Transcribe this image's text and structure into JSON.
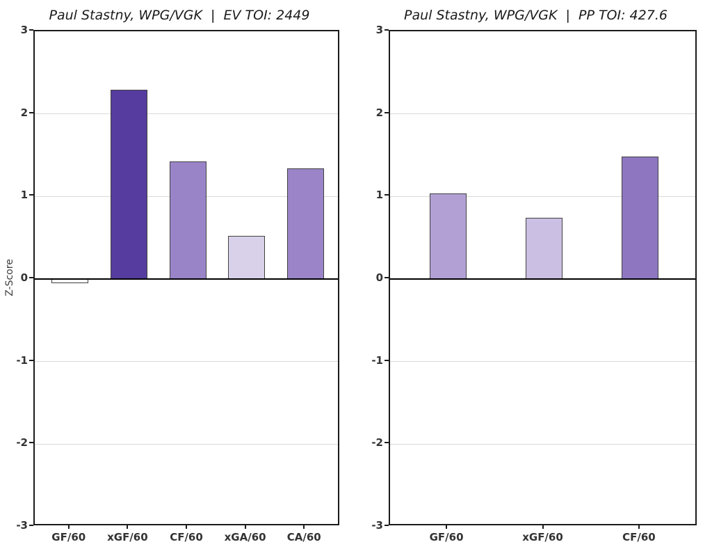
{
  "figure": {
    "background": "#ffffff",
    "axis_color": "#1a1a1a",
    "grid_color": "#d9d9d9",
    "zero_line_color": "#000000",
    "bar_edge_color": "#404040",
    "tick_label_color": "#333333",
    "title_color": "#1a1a1a",
    "ylabel": "Z-Score"
  },
  "chart_data": [
    {
      "type": "bar",
      "title": "Paul Stastny, WPG/VGK  |  EV TOI: 2449",
      "categories": [
        "GF/60",
        "xGF/60",
        "CF/60",
        "xGA/60",
        "CA/60"
      ],
      "values": [
        -0.05,
        2.29,
        1.42,
        0.52,
        1.34
      ],
      "bar_colors": [
        "#fbfafc",
        "#563c9e",
        "#9a84c8",
        "#d9d1e9",
        "#9b85c8"
      ],
      "ylabel": "Z-Score",
      "ylim": [
        -3,
        3
      ],
      "yticks": [
        3,
        2,
        1,
        0,
        -1,
        -2,
        -3
      ],
      "grid": true,
      "legend": false
    },
    {
      "type": "bar",
      "title": "Paul Stastny, WPG/VGK  |  PP TOI: 427.6",
      "categories": [
        "GF/60",
        "xGF/60",
        "CF/60"
      ],
      "values": [
        1.04,
        0.74,
        1.48
      ],
      "bar_colors": [
        "#b2a0d5",
        "#cbbfe3",
        "#8e77c0"
      ],
      "ylabel": "",
      "ylim": [
        -3,
        3
      ],
      "yticks": [
        3,
        2,
        1,
        0,
        -1,
        -2,
        -3
      ],
      "grid": true,
      "legend": false
    }
  ]
}
